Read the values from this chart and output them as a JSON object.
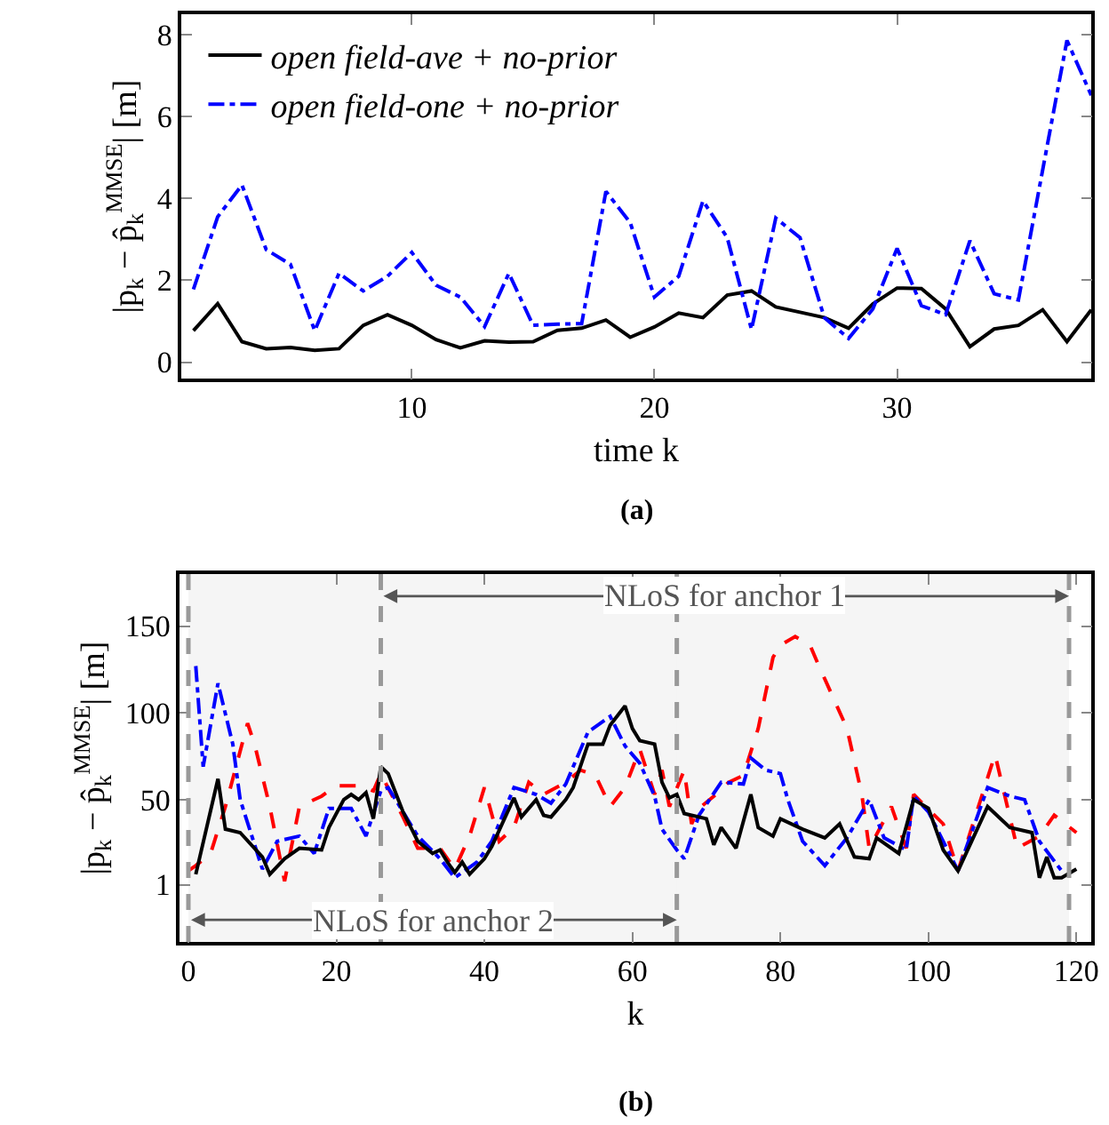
{
  "chart_data": [
    {
      "type": "line",
      "xlabel": "time k",
      "ylabel": "|p$_{k}$ − p̂$_{k}$$^{MMSE}$| [m]",
      "annotations": [
        "(a)"
      ],
      "x": [
        1,
        2,
        3,
        4,
        5,
        6,
        7,
        8,
        9,
        10,
        11,
        12,
        13,
        14,
        15,
        16,
        17,
        18,
        19,
        20,
        21,
        22,
        23,
        24,
        25,
        26,
        27,
        28,
        29,
        30,
        31,
        32,
        33,
        34,
        35,
        36,
        37,
        38
      ],
      "xlim": [
        0.5,
        38
      ],
      "xticks": [
        10,
        20,
        30
      ],
      "ylim": [
        -0.4,
        8.5
      ],
      "yticks": [
        0,
        2,
        4,
        6,
        8
      ],
      "legend": "top left",
      "series": [
        {
          "name": "open field-ave + no-prior",
          "color": "#000000",
          "line_style": "solid",
          "values": [
            0.77,
            1.43,
            0.5,
            0.33,
            0.36,
            0.29,
            0.33,
            0.9,
            1.16,
            0.9,
            0.55,
            0.35,
            0.52,
            0.49,
            0.5,
            0.78,
            0.83,
            1.03,
            0.61,
            0.86,
            1.2,
            1.09,
            1.64,
            1.74,
            1.35,
            1.22,
            1.09,
            0.83,
            1.42,
            1.81,
            1.8,
            1.3,
            0.38,
            0.81,
            0.9,
            1.28,
            0.5,
            1.28
          ]
        },
        {
          "name": "open field-one + no-prior",
          "color": "#0000ff",
          "line_style": "dashdot",
          "values": [
            1.78,
            3.55,
            4.33,
            2.75,
            2.39,
            0.77,
            2.17,
            1.74,
            2.1,
            2.68,
            1.88,
            1.59,
            0.87,
            2.17,
            0.9,
            0.93,
            0.94,
            4.17,
            3.41,
            1.59,
            2.1,
            3.94,
            3.04,
            0.8,
            3.52,
            3.04,
            1.09,
            0.58,
            1.3,
            2.78,
            1.38,
            1.16,
            2.97,
            1.67,
            1.52,
            4.7,
            7.86,
            6.52
          ]
        }
      ]
    },
    {
      "type": "line",
      "xlabel": "k",
      "ylabel": "|p$_{k}$ − p̂$_{k}$$^{MMSE}$| [m]",
      "xlim": [
        -1.2,
        122
      ],
      "xticks": [
        0,
        20,
        40,
        60,
        80,
        100,
        120
      ],
      "ylim": [
        -32,
        180
      ],
      "yticks": [
        1,
        50,
        100,
        150
      ],
      "ref_lines": [
        {
          "axis": "x",
          "value": 0,
          "color": "#999999",
          "line_style": "dashed"
        },
        {
          "axis": "x",
          "value": 26,
          "color": "#999999",
          "line_style": "dashed"
        },
        {
          "axis": "x",
          "value": 66,
          "color": "#999999",
          "line_style": "dashed"
        },
        {
          "axis": "x",
          "value": 119,
          "color": "#999999",
          "line_style": "dashed"
        }
      ],
      "annotations": [
        "(b)"
      ],
      "bands": [
        {
          "axis": "x",
          "from": 26,
          "to": 119,
          "label": "NLoS for anchor 1",
          "color": "#f5f5f5"
        },
        {
          "axis": "x",
          "from": 0,
          "to": 66,
          "label": "NLoS for anchor 2",
          "color": "#f5f5f5"
        }
      ],
      "series": [
        {
          "color": "#ff0000",
          "line_style": "dashed",
          "x": [
            0,
            1,
            3,
            5,
            8,
            9,
            11,
            13,
            15,
            18,
            20,
            23,
            25,
            26,
            29,
            31,
            34,
            36,
            38,
            40,
            42,
            44,
            46,
            48,
            51,
            53,
            55,
            57,
            59,
            61,
            63,
            64,
            65,
            67,
            68,
            69,
            71,
            73,
            75,
            77,
            79,
            80,
            82,
            84,
            85,
            89,
            91,
            92,
            95,
            97,
            98,
            102,
            104,
            109,
            112,
            115,
            117,
            120
          ],
          "values": [
            9,
            12,
            19,
            46,
            94,
            81,
            46,
            3,
            46,
            52,
            58,
            58,
            55,
            65,
            40,
            22,
            22,
            10,
            29,
            57,
            26,
            34,
            60,
            53,
            60,
            67,
            64,
            46,
            57,
            79,
            53,
            67,
            46,
            67,
            36,
            45,
            52,
            60,
            64,
            91,
            132,
            139,
            144,
            139,
            129,
            91,
            53,
            22,
            46,
            22,
            53,
            36,
            9,
            76,
            22,
            29,
            41,
            31
          ]
        },
        {
          "color": "#0000ff",
          "line_style": "dashdot",
          "x": [
            1,
            2,
            4,
            6,
            7,
            10,
            12,
            15,
            17,
            19,
            22,
            24,
            26,
            27,
            31,
            34,
            36,
            39,
            41,
            44,
            47,
            49,
            51,
            54,
            57,
            59,
            61,
            63,
            64,
            66,
            67,
            69,
            72,
            75,
            76,
            78,
            80,
            81,
            83,
            86,
            89,
            92,
            94,
            97,
            98,
            100,
            104,
            108,
            111,
            113,
            115,
            118
          ],
          "values": [
            127,
            69,
            117,
            82,
            50,
            10,
            26,
            29,
            19,
            45,
            45,
            29,
            55,
            57,
            29,
            16,
            5,
            14,
            26,
            57,
            53,
            48,
            59,
            89,
            98,
            81,
            71,
            52,
            33,
            21,
            16,
            41,
            60,
            59,
            74,
            67,
            65,
            50,
            26,
            12,
            28,
            50,
            28,
            21,
            52,
            43,
            9,
            57,
            52,
            50,
            26,
            9
          ]
        },
        {
          "color": "#000000",
          "line_style": "solid",
          "x": [
            1,
            4,
            5,
            7,
            10,
            11,
            13,
            15,
            18,
            19,
            21,
            22,
            23,
            24,
            25,
            26,
            27,
            29,
            31,
            33,
            34,
            35,
            36,
            37,
            38,
            40,
            41,
            44,
            45,
            47,
            48,
            49,
            51,
            52,
            54,
            56,
            57,
            59,
            60,
            61,
            63,
            64,
            65,
            66,
            67,
            68,
            70,
            71,
            72,
            74,
            76,
            77,
            79,
            80,
            83,
            86,
            88,
            90,
            92,
            93,
            96,
            98,
            100,
            102,
            104,
            108,
            111,
            114,
            115,
            116,
            117,
            118,
            120
          ],
          "values": [
            7,
            62,
            33,
            31,
            17,
            7,
            16,
            22,
            21,
            34,
            50,
            53,
            50,
            54,
            39,
            69,
            65,
            43,
            26,
            19,
            21,
            14,
            8,
            14,
            7,
            16,
            23,
            51,
            40,
            50,
            41,
            40,
            50,
            57,
            82,
            82,
            93,
            104,
            91,
            84,
            82,
            60,
            51,
            53,
            42,
            41,
            39,
            24,
            34,
            22,
            53,
            34,
            29,
            39,
            33,
            28,
            36,
            17,
            16,
            28,
            19,
            50,
            45,
            21,
            9,
            46,
            34,
            31,
            5,
            17,
            5,
            5,
            10
          ]
        }
      ]
    }
  ]
}
